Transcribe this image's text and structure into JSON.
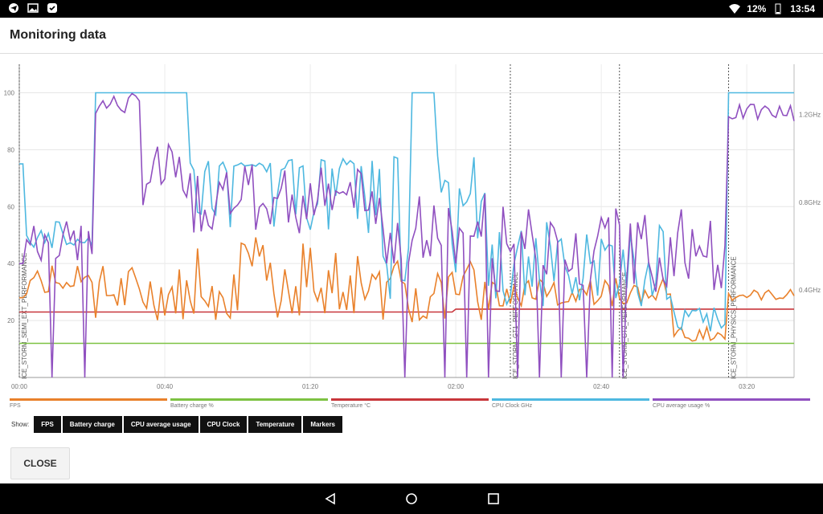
{
  "status_bar": {
    "battery": "12%",
    "time": "13:54",
    "icons": [
      "telegram-icon",
      "image-icon",
      "notification-icon",
      "wifi-icon",
      "battery-icon"
    ]
  },
  "app": {
    "title": "Monitoring data"
  },
  "chart_data": {
    "type": "line",
    "x_ticks": [
      "00:00",
      "00:40",
      "01:20",
      "02:00",
      "02:40",
      "03:20"
    ],
    "y_left_ticks": [
      20,
      40,
      60,
      80,
      100
    ],
    "y_right_ticks": [
      "0.4GHz",
      "0.8GHz",
      "1.2GHz"
    ],
    "ylim_left": [
      0,
      110
    ],
    "markers": [
      {
        "x": 0,
        "label": "ICE_STORM_SEMI_EXT_PERFORMANCE"
      },
      {
        "x": 135,
        "label": "ICE_STORM_GT1_PERFORMANCE"
      },
      {
        "x": 165,
        "label": "ICE_STORM_GT2_PERFORMANCE"
      },
      {
        "x": 195,
        "label": "ICE_STORM_PHYSICS_PERFORMANCE"
      }
    ],
    "series": [
      {
        "name": "FPS",
        "color": "#e9812b"
      },
      {
        "name": "Battery charge %",
        "color": "#7dc242"
      },
      {
        "name": "Temperature °C",
        "color": "#c8363b"
      },
      {
        "name": "CPU Clock GHz",
        "color": "#4eb8e0"
      },
      {
        "name": "CPU average usage %",
        "color": "#9050c0"
      }
    ],
    "x_range": [
      0,
      213
    ]
  },
  "controls": {
    "show_label": "Show:",
    "toggles": [
      "FPS",
      "Battery charge",
      "CPU average usage",
      "CPU Clock",
      "Temperature",
      "Markers"
    ],
    "close_label": "CLOSE"
  }
}
